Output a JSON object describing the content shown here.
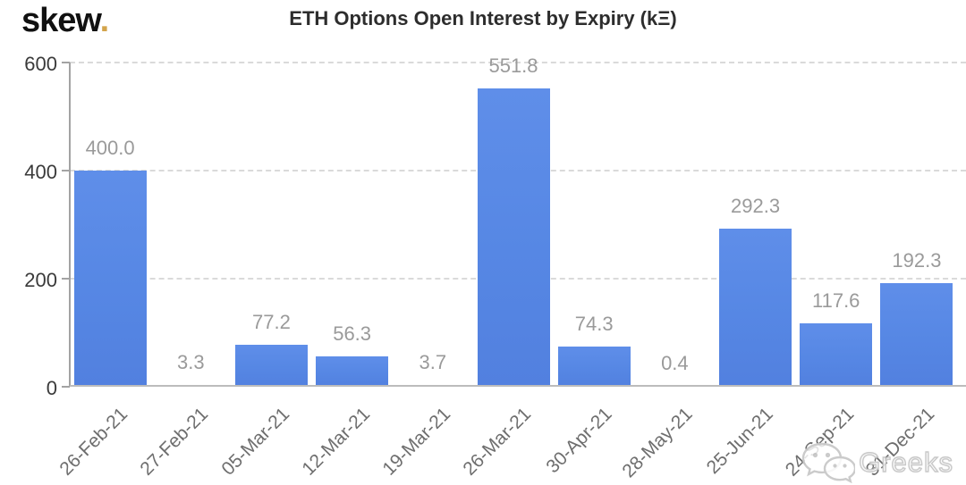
{
  "logo": {
    "brand": "skew",
    "dot": "."
  },
  "header": {
    "title": "ETH Options Open Interest by Expiry (kΞ)"
  },
  "watermark": {
    "icon": "wechat-icon",
    "text": "Greeks"
  },
  "chart_data": {
    "type": "bar",
    "title": "ETH Options Open Interest by Expiry (kΞ)",
    "categories": [
      "26-Feb-21",
      "27-Feb-21",
      "05-Mar-21",
      "12-Mar-21",
      "19-Mar-21",
      "26-Mar-21",
      "30-Apr-21",
      "28-May-21",
      "25-Jun-21",
      "24-Sep-21",
      "31-Dec-21"
    ],
    "values": [
      400.0,
      3.3,
      77.2,
      56.3,
      3.7,
      551.8,
      74.3,
      0.4,
      292.3,
      117.6,
      192.3
    ],
    "bar_labels": [
      "400.0",
      "3.3",
      "77.2",
      "56.3",
      "3.7",
      "551.8",
      "74.3",
      "0.4",
      "292.3",
      "117.6",
      "192.3"
    ],
    "xlabel": "",
    "ylabel": "",
    "ylim": [
      0,
      600
    ],
    "yticks": [
      0,
      200,
      400,
      600
    ],
    "grid": "horizontal-dashed",
    "legend": "none",
    "bar_color": "#5c88e6",
    "value_label_color": "#9a9a9a",
    "axis_label_color": "#3a3a3a",
    "tick_label_color": "#6e6e6e"
  }
}
